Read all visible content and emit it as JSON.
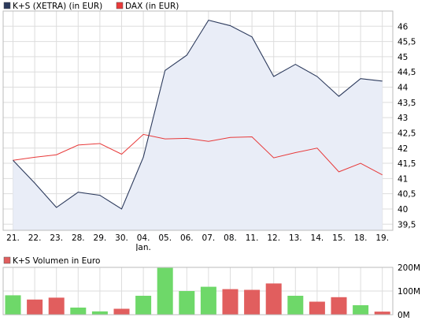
{
  "colors": {
    "ks_line": "#2c3a5c",
    "ks_fill": "#e9edf7",
    "dax_line": "#e83a3a",
    "vol_up": "#6ed869",
    "vol_down": "#e15e5e",
    "grid": "#dddddd",
    "frame": "#bbbbbb"
  },
  "chart_data": [
    {
      "type": "line",
      "legend": [
        {
          "name": "K+S (XETRA) (in EUR)",
          "color": "#2c3a5c"
        },
        {
          "name": "DAX (in EUR)",
          "color": "#e83a3a"
        }
      ],
      "legend_placement": "top-left",
      "categories": [
        "21.",
        "22.",
        "23.",
        "28.",
        "29.",
        "30.",
        "04.",
        "05.",
        "06.",
        "07.",
        "08.",
        "11.",
        "12.",
        "13.",
        "14.",
        "15.",
        "18.",
        "19."
      ],
      "category_sublabels": {
        "6": "Jan."
      },
      "ylim": [
        39.3,
        46.5
      ],
      "yticks": [
        "39,5",
        "40",
        "40,5",
        "41",
        "41,5",
        "42",
        "42,5",
        "43",
        "43,5",
        "44",
        "44,5",
        "45",
        "45,5",
        "46"
      ],
      "ytick_values": [
        39.5,
        40,
        40.5,
        41,
        41.5,
        42,
        42.5,
        43,
        43.5,
        44,
        44.5,
        45,
        45.5,
        46
      ],
      "grid": true,
      "series": [
        {
          "name": "K+S (XETRA) (in EUR)",
          "style": "area",
          "values": [
            41.6,
            40.85,
            40.05,
            40.55,
            40.45,
            40.0,
            41.7,
            44.55,
            45.05,
            46.2,
            46.02,
            45.65,
            44.35,
            44.75,
            44.35,
            43.7,
            44.28,
            44.2
          ]
        },
        {
          "name": "DAX (in EUR)",
          "style": "line",
          "values": [
            41.6,
            41.7,
            41.78,
            42.1,
            42.15,
            41.8,
            42.45,
            42.3,
            42.32,
            42.22,
            42.35,
            42.37,
            41.68,
            41.85,
            42.0,
            41.22,
            41.5,
            41.12
          ]
        }
      ]
    },
    {
      "type": "bar",
      "legend": [
        {
          "name": "K+S Volumen in Euro",
          "color": "#e15e5e"
        }
      ],
      "legend_placement": "top-left",
      "categories": [
        "21.",
        "22.",
        "23.",
        "28.",
        "29.",
        "30.",
        "04.",
        "05.",
        "06.",
        "07.",
        "08.",
        "11.",
        "12.",
        "13.",
        "14.",
        "15.",
        "18.",
        "19."
      ],
      "ylim": [
        0,
        200
      ],
      "yticks": [
        "0M",
        "100M",
        "200M"
      ],
      "ytick_values": [
        0,
        100,
        200
      ],
      "unit": "M EUR",
      "series": [
        {
          "name": "K+S Volumen in Euro",
          "values": [
            82,
            64,
            72,
            30,
            14,
            25,
            80,
            198,
            100,
            118,
            108,
            105,
            132,
            80,
            55,
            74,
            40,
            13
          ],
          "direction": [
            "up",
            "down",
            "down",
            "up",
            "up",
            "down",
            "up",
            "up",
            "up",
            "up",
            "down",
            "down",
            "down",
            "up",
            "down",
            "down",
            "up",
            "down"
          ]
        }
      ]
    }
  ]
}
